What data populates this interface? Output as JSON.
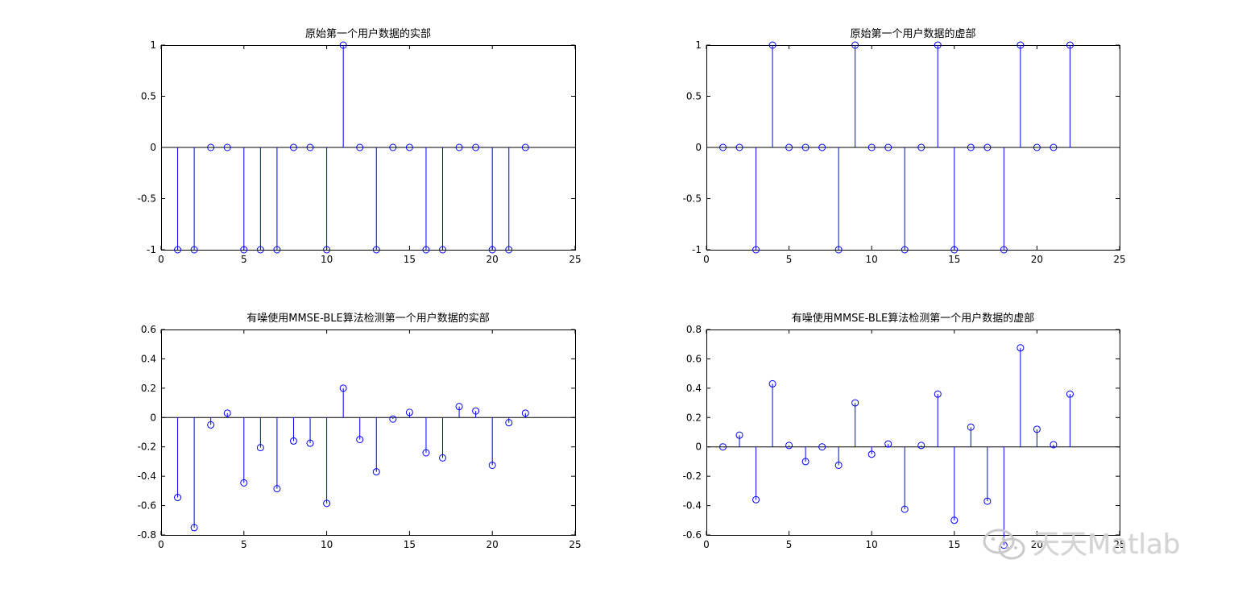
{
  "figure": {
    "background": "#ffffff",
    "stem_color": "#0000ff",
    "axis_color": "#000000"
  },
  "chart_data": [
    {
      "type": "stem",
      "title": "原始第一个用户数据的实部",
      "xlim": [
        0,
        25
      ],
      "ylim": [
        -1,
        1
      ],
      "xticks": [
        0,
        5,
        10,
        15,
        20,
        25
      ],
      "yticks": [
        -1,
        -0.5,
        0,
        0.5,
        1
      ],
      "ytick_labels": [
        "-1",
        "-0.5",
        "0",
        "0.5",
        "1"
      ],
      "x": [
        1,
        2,
        3,
        4,
        5,
        6,
        7,
        8,
        9,
        10,
        11,
        12,
        13,
        14,
        15,
        16,
        17,
        18,
        19,
        20,
        21,
        22
      ],
      "y": [
        -1,
        -1,
        0,
        0,
        -1,
        -1,
        -1,
        0,
        0,
        -1,
        1,
        0,
        -1,
        0,
        0,
        -1,
        -1,
        0,
        0,
        -1,
        -1,
        0
      ]
    },
    {
      "type": "stem",
      "title": "原始第一个用户数据的虚部",
      "xlim": [
        0,
        25
      ],
      "ylim": [
        -1,
        1
      ],
      "xticks": [
        0,
        5,
        10,
        15,
        20,
        25
      ],
      "yticks": [
        -1,
        -0.5,
        0,
        0.5,
        1
      ],
      "ytick_labels": [
        "-1",
        "-0.5",
        "0",
        "0.5",
        "1"
      ],
      "x": [
        1,
        2,
        3,
        4,
        5,
        6,
        7,
        8,
        9,
        10,
        11,
        12,
        13,
        14,
        15,
        16,
        17,
        18,
        19,
        20,
        21,
        22
      ],
      "y": [
        0,
        0,
        -1,
        1,
        0,
        0,
        0,
        -1,
        1,
        0,
        0,
        -1,
        0,
        1,
        -1,
        0,
        0,
        -1,
        1,
        0,
        0,
        1
      ]
    },
    {
      "type": "stem",
      "title": "有噪使用MMSE-BLE算法检测第一个用户数据的实部",
      "xlim": [
        0,
        25
      ],
      "ylim": [
        -0.8,
        0.6
      ],
      "xticks": [
        0,
        5,
        10,
        15,
        20,
        25
      ],
      "yticks": [
        -0.8,
        -0.6,
        -0.4,
        -0.2,
        0,
        0.2,
        0.4,
        0.6
      ],
      "ytick_labels": [
        "-0.8",
        "-0.6",
        "-0.4",
        "-0.2",
        "0",
        "0.2",
        "0.4",
        "0.6"
      ],
      "x": [
        1,
        2,
        3,
        4,
        5,
        6,
        7,
        8,
        9,
        10,
        11,
        12,
        13,
        14,
        15,
        16,
        17,
        18,
        19,
        20,
        21,
        22
      ],
      "y": [
        -0.545,
        -0.75,
        -0.05,
        0.03,
        -0.445,
        -0.205,
        -0.485,
        -0.16,
        -0.175,
        -0.585,
        0.2,
        -0.15,
        -0.37,
        -0.01,
        0.035,
        -0.24,
        -0.275,
        0.075,
        0.045,
        -0.325,
        -0.035,
        0.03
      ]
    },
    {
      "type": "stem",
      "title": "有噪使用MMSE-BLE算法检测第一个用户数据的虚部",
      "xlim": [
        0,
        25
      ],
      "ylim": [
        -0.6,
        0.8
      ],
      "xticks": [
        0,
        5,
        10,
        15,
        20,
        25
      ],
      "yticks": [
        -0.6,
        -0.4,
        -0.2,
        0,
        0.2,
        0.4,
        0.6,
        0.8
      ],
      "ytick_labels": [
        "-0.6",
        "-0.4",
        "-0.2",
        "0",
        "0.2",
        "0.4",
        "0.6",
        "0.8"
      ],
      "x": [
        1,
        2,
        3,
        4,
        5,
        6,
        7,
        8,
        9,
        10,
        11,
        12,
        13,
        14,
        15,
        16,
        17,
        18,
        19,
        20,
        21,
        22
      ],
      "y": [
        0,
        0.08,
        -0.36,
        0.43,
        0.01,
        -0.1,
        0,
        -0.125,
        0.3,
        -0.05,
        0.02,
        -0.425,
        0.01,
        0.36,
        -0.5,
        0.135,
        -0.37,
        -0.67,
        0.675,
        0.12,
        0.015,
        0.36
      ]
    }
  ],
  "watermark": {
    "text": "天天Matlab",
    "icon": "wechat-icon"
  }
}
